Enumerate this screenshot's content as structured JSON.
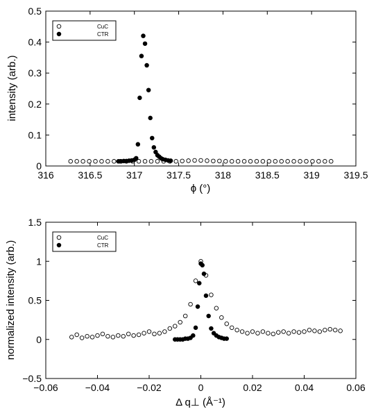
{
  "chart_data": [
    {
      "type": "scatter",
      "xlabel": "ϕ (°)",
      "ylabel": "intensity (arb.)",
      "xlim": [
        316,
        319.5
      ],
      "ylim": [
        0,
        0.5
      ],
      "xticks": [
        "316",
        "316.5",
        "317",
        "317.5",
        "318",
        "318.5",
        "319",
        "319.5"
      ],
      "yticks": [
        "0",
        "0.1",
        "0.2",
        "0.3",
        "0.4",
        "0.5"
      ],
      "legend": {
        "placement": "top-left",
        "entries": [
          "CuC",
          "CTR"
        ]
      },
      "grid": false,
      "series": [
        {
          "name": "CuC",
          "marker": "open-circle",
          "x": [
            316.28,
            316.35,
            316.42,
            316.49,
            316.56,
            316.63,
            316.7,
            316.77,
            316.84,
            316.91,
            316.98,
            317.05,
            317.12,
            317.19,
            317.26,
            317.33,
            317.4,
            317.47,
            317.54,
            317.61,
            317.68,
            317.75,
            317.82,
            317.89,
            317.96,
            318.03,
            318.1,
            318.17,
            318.24,
            318.31,
            318.38,
            318.45,
            318.52,
            318.59,
            318.66,
            318.73,
            318.8,
            318.87,
            318.94,
            319.01,
            319.08,
            319.15,
            319.22
          ],
          "y": [
            0.015,
            0.015,
            0.015,
            0.015,
            0.015,
            0.015,
            0.015,
            0.015,
            0.015,
            0.015,
            0.015,
            0.015,
            0.015,
            0.015,
            0.015,
            0.015,
            0.015,
            0.015,
            0.016,
            0.017,
            0.018,
            0.018,
            0.017,
            0.016,
            0.016,
            0.015,
            0.015,
            0.015,
            0.015,
            0.015,
            0.015,
            0.015,
            0.015,
            0.015,
            0.015,
            0.015,
            0.015,
            0.015,
            0.015,
            0.015,
            0.015,
            0.015,
            0.015
          ]
        },
        {
          "name": "CTR",
          "marker": "filled-circle",
          "x": [
            316.82,
            316.85,
            316.88,
            316.91,
            316.94,
            316.97,
            317.0,
            317.02,
            317.04,
            317.06,
            317.08,
            317.1,
            317.12,
            317.14,
            317.16,
            317.18,
            317.2,
            317.22,
            317.24,
            317.26,
            317.28,
            317.3,
            317.32,
            317.35,
            317.38,
            317.41
          ],
          "y": [
            0.015,
            0.015,
            0.016,
            0.016,
            0.017,
            0.018,
            0.02,
            0.025,
            0.07,
            0.22,
            0.355,
            0.42,
            0.395,
            0.325,
            0.245,
            0.155,
            0.09,
            0.06,
            0.045,
            0.035,
            0.03,
            0.025,
            0.022,
            0.02,
            0.018,
            0.017
          ]
        }
      ]
    },
    {
      "type": "scatter",
      "xlabel": "Δ q⊥ (Å⁻¹)",
      "ylabel": "normalized intensity (arb.)",
      "xlim": [
        -0.06,
        0.06
      ],
      "ylim": [
        -0.5,
        1.5
      ],
      "xticks": [
        "−0.06",
        "−0.04",
        "−0.02",
        "0",
        "0.02",
        "0.04",
        "0.06"
      ],
      "yticks": [
        "−0.5",
        "0",
        "0.5",
        "1",
        "1.5"
      ],
      "legend": {
        "placement": "top-left",
        "entries": [
          "CuC",
          "CTR"
        ]
      },
      "grid": false,
      "series": [
        {
          "name": "CuC",
          "marker": "open-circle",
          "x": [
            -0.05,
            -0.048,
            -0.046,
            -0.044,
            -0.042,
            -0.04,
            -0.038,
            -0.036,
            -0.034,
            -0.032,
            -0.03,
            -0.028,
            -0.026,
            -0.024,
            -0.022,
            -0.02,
            -0.018,
            -0.016,
            -0.014,
            -0.012,
            -0.01,
            -0.008,
            -0.006,
            -0.004,
            -0.002,
            0.0,
            0.002,
            0.004,
            0.006,
            0.008,
            0.01,
            0.012,
            0.014,
            0.016,
            0.018,
            0.02,
            0.022,
            0.024,
            0.026,
            0.028,
            0.03,
            0.032,
            0.034,
            0.036,
            0.038,
            0.04,
            0.042,
            0.044,
            0.046,
            0.048,
            0.05,
            0.052,
            0.054
          ],
          "y": [
            0.03,
            0.06,
            0.02,
            0.04,
            0.03,
            0.05,
            0.07,
            0.04,
            0.03,
            0.05,
            0.04,
            0.07,
            0.05,
            0.06,
            0.08,
            0.1,
            0.07,
            0.08,
            0.1,
            0.14,
            0.17,
            0.22,
            0.3,
            0.45,
            0.75,
            1.0,
            0.82,
            0.57,
            0.4,
            0.28,
            0.2,
            0.15,
            0.12,
            0.1,
            0.08,
            0.1,
            0.08,
            0.1,
            0.08,
            0.07,
            0.09,
            0.1,
            0.08,
            0.1,
            0.09,
            0.1,
            0.12,
            0.11,
            0.1,
            0.12,
            0.13,
            0.12,
            0.11
          ]
        },
        {
          "name": "CTR",
          "marker": "filled-circle",
          "x": [
            -0.01,
            -0.009,
            -0.008,
            -0.007,
            -0.006,
            -0.005,
            -0.004,
            -0.003,
            -0.002,
            -0.0012,
            -0.0006,
            0.0,
            0.0006,
            0.0012,
            0.002,
            0.003,
            0.004,
            0.005,
            0.006,
            0.007,
            0.008,
            0.009,
            0.01
          ],
          "y": [
            0.0,
            0.0,
            0.0,
            0.0,
            0.01,
            0.01,
            0.02,
            0.05,
            0.15,
            0.42,
            0.72,
            0.97,
            0.95,
            0.84,
            0.56,
            0.3,
            0.14,
            0.08,
            0.05,
            0.03,
            0.02,
            0.01,
            0.01
          ]
        }
      ]
    }
  ]
}
